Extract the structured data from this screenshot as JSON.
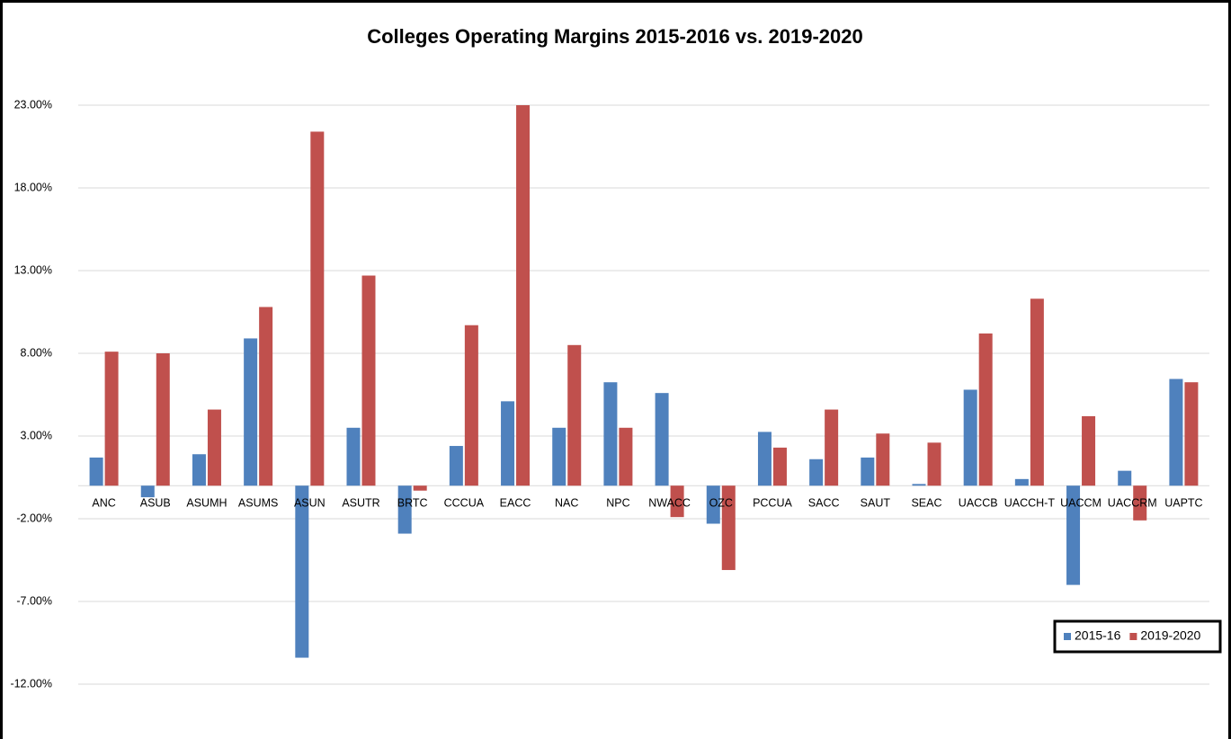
{
  "chart_data": {
    "type": "bar",
    "title": "Colleges Operating Margins 2015-2016 vs. 2019-2020",
    "categories": [
      "ANC",
      "ASUB",
      "ASUMH",
      "ASUMS",
      "ASUN",
      "ASUTR",
      "BRTC",
      "CCCUA",
      "EACC",
      "NAC",
      "NPC",
      "NWACC",
      "OZC",
      "PCCUA",
      "SACC",
      "SAUT",
      "SEAC",
      "UACCB",
      "UACCH-T",
      "UACCM",
      "UACCRM",
      "UAPTC"
    ],
    "series": [
      {
        "name": "2015-16",
        "color": "#4f81bd",
        "values": [
          1.7,
          -0.7,
          1.9,
          8.9,
          -10.4,
          3.5,
          -2.9,
          2.4,
          5.1,
          3.5,
          6.25,
          5.6,
          -2.3,
          3.25,
          1.6,
          1.7,
          0.1,
          5.8,
          0.4,
          -6.0,
          0.9,
          6.45
        ]
      },
      {
        "name": "2019-2020",
        "color": "#c0504d",
        "values": [
          8.1,
          8.0,
          4.6,
          10.8,
          21.4,
          12.7,
          -0.3,
          9.7,
          23.0,
          8.5,
          3.5,
          -1.9,
          -5.1,
          2.3,
          4.6,
          3.15,
          2.6,
          9.2,
          11.3,
          4.2,
          -2.1,
          6.25
        ]
      }
    ],
    "ylim": [
      -14,
      25
    ],
    "yticks": [
      {
        "value": -12,
        "label": "-12.00%"
      },
      {
        "value": -7,
        "label": "-7.00%"
      },
      {
        "value": -2,
        "label": "-2.00%"
      },
      {
        "value": 3,
        "label": "3.00%"
      },
      {
        "value": 8,
        "label": "8.00%"
      },
      {
        "value": 13,
        "label": "13.00%"
      },
      {
        "value": 18,
        "label": "18.00%"
      },
      {
        "value": 23,
        "label": "23.00%"
      }
    ],
    "grid": true,
    "legend": "lower right"
  }
}
